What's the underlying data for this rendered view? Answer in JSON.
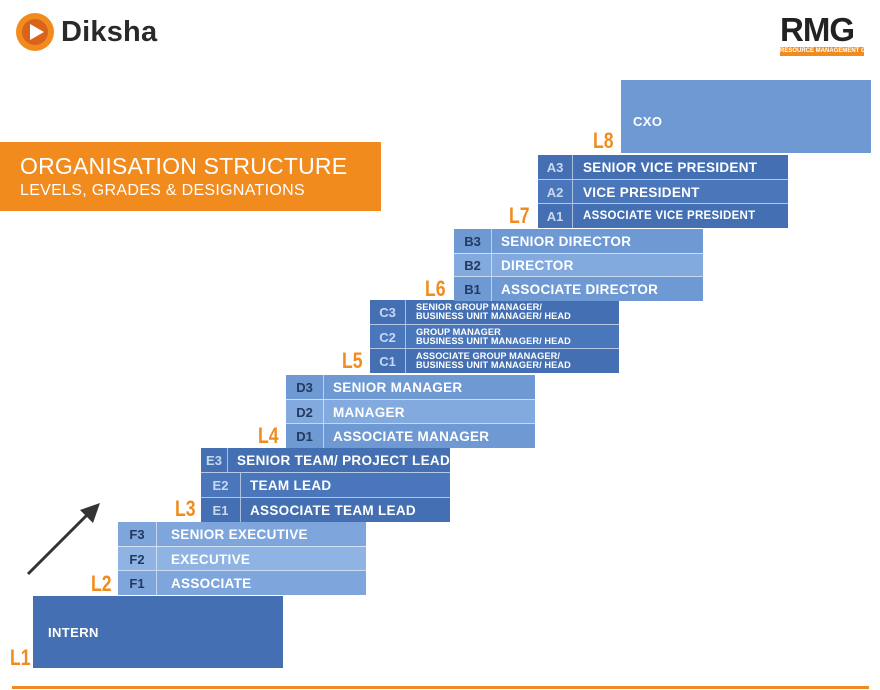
{
  "header": {
    "brand_name": "Diksha",
    "partner_logo": "RMG",
    "partner_tagline": "RESOURCE MANAGEMENT GROUP"
  },
  "title": {
    "main": "ORGANISATION STRUCTURE",
    "subtitle": "LEVELS, GRADES & DESIGNATIONS"
  },
  "colors": {
    "accent": "#f28b1e",
    "blue_dark": "#4470b3",
    "blue_mid": "#5a86c8",
    "blue_light": "#7ea6dc",
    "text_dark": "#233a60"
  },
  "levels": {
    "L1": {
      "label": "L1",
      "designation": "INTERN"
    },
    "L2": {
      "label": "L2",
      "rows": [
        {
          "grade": "F3",
          "title": "SENIOR EXECUTIVE"
        },
        {
          "grade": "F2",
          "title": "EXECUTIVE"
        },
        {
          "grade": "F1",
          "title": "ASSOCIATE"
        }
      ]
    },
    "L3": {
      "label": "L3",
      "rows": [
        {
          "grade": "E3",
          "title": "SENIOR TEAM/ PROJECT LEAD"
        },
        {
          "grade": "E2",
          "title": "TEAM LEAD"
        },
        {
          "grade": "E1",
          "title": "ASSOCIATE TEAM LEAD"
        }
      ]
    },
    "L4": {
      "label": "L4",
      "rows": [
        {
          "grade": "D3",
          "title": "SENIOR MANAGER"
        },
        {
          "grade": "D2",
          "title": "MANAGER"
        },
        {
          "grade": "D1",
          "title": "ASSOCIATE MANAGER"
        }
      ]
    },
    "L5": {
      "label": "L5",
      "rows": [
        {
          "grade": "C3",
          "line1": "SENIOR GROUP MANAGER/",
          "line2": "BUSINESS UNIT MANAGER/ HEAD"
        },
        {
          "grade": "C2",
          "line1": "GROUP MANAGER",
          "line2": "BUSINESS UNIT MANAGER/ HEAD"
        },
        {
          "grade": "C1",
          "line1": "ASSOCIATE GROUP MANAGER/",
          "line2": "BUSINESS UNIT MANAGER/ HEAD"
        }
      ]
    },
    "L6": {
      "label": "L6",
      "rows": [
        {
          "grade": "B3",
          "title": "SENIOR DIRECTOR"
        },
        {
          "grade": "B2",
          "title": "DIRECTOR"
        },
        {
          "grade": "B1",
          "title": "ASSOCIATE DIRECTOR"
        }
      ]
    },
    "L7": {
      "label": "L7",
      "rows": [
        {
          "grade": "A3",
          "title": "SENIOR VICE PRESIDENT"
        },
        {
          "grade": "A2",
          "title": "VICE PRESIDENT"
        },
        {
          "grade": "A1",
          "title": "ASSOCIATE VICE PRESIDENT"
        }
      ]
    },
    "L8": {
      "label": "L8",
      "designation": "CXO"
    }
  }
}
